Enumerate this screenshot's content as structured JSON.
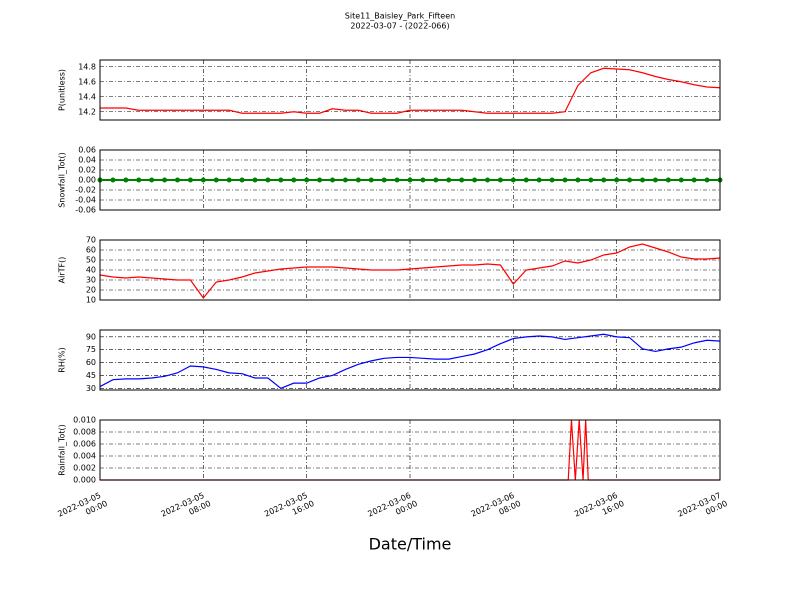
{
  "title": "Site11_Baisley_Park_Fifteen",
  "subtitle": "2022-03-07 - (2022-066)",
  "xlabel": "Date/Time",
  "xlim": [
    "2022-03-05 00:00",
    "2022-03-07 00:00"
  ],
  "xticks": [
    "2022-03-05 00:00",
    "2022-03-05 08:00",
    "2022-03-05 16:00",
    "2022-03-06 00:00",
    "2022-03-06 08:00",
    "2022-03-06 16:00",
    "2022-03-07 00:00"
  ],
  "chart_data": [
    {
      "type": "line",
      "ylabel": "P(unitless)",
      "ylim": [
        14.09,
        14.89
      ],
      "yticks": [
        14.2,
        14.4,
        14.6,
        14.8
      ],
      "grid": true,
      "x": [
        "2022-03-05 00:00",
        "2022-03-05 01:00",
        "2022-03-05 02:00",
        "2022-03-05 03:00",
        "2022-03-05 04:00",
        "2022-03-05 05:00",
        "2022-03-05 06:00",
        "2022-03-05 07:00",
        "2022-03-05 08:00",
        "2022-03-05 09:00",
        "2022-03-05 10:00",
        "2022-03-05 11:00",
        "2022-03-05 12:00",
        "2022-03-05 13:00",
        "2022-03-05 14:00",
        "2022-03-05 15:00",
        "2022-03-05 16:00",
        "2022-03-05 17:00",
        "2022-03-05 18:00",
        "2022-03-05 19:00",
        "2022-03-05 20:00",
        "2022-03-05 21:00",
        "2022-03-05 22:00",
        "2022-03-05 23:00",
        "2022-03-06 00:00",
        "2022-03-06 01:00",
        "2022-03-06 02:00",
        "2022-03-06 03:00",
        "2022-03-06 04:00",
        "2022-03-06 05:00",
        "2022-03-06 06:00",
        "2022-03-06 07:00",
        "2022-03-06 08:00",
        "2022-03-06 09:00",
        "2022-03-06 10:00",
        "2022-03-06 11:00",
        "2022-03-06 12:00",
        "2022-03-06 13:00",
        "2022-03-06 14:00",
        "2022-03-06 15:00",
        "2022-03-06 16:00",
        "2022-03-06 17:00",
        "2022-03-06 18:00",
        "2022-03-06 19:00",
        "2022-03-06 20:00",
        "2022-03-06 21:00",
        "2022-03-06 22:00",
        "2022-03-06 23:00",
        "2022-03-07 00:00"
      ],
      "series": [
        {
          "color": "#ff0000",
          "values": [
            14.25,
            14.25,
            14.25,
            14.22,
            14.22,
            14.22,
            14.22,
            14.22,
            14.22,
            14.22,
            14.22,
            14.18,
            14.18,
            14.18,
            14.18,
            14.2,
            14.18,
            14.18,
            14.24,
            14.22,
            14.22,
            14.18,
            14.18,
            14.18,
            14.22,
            14.22,
            14.22,
            14.22,
            14.22,
            14.2,
            14.18,
            14.18,
            14.18,
            14.18,
            14.18,
            14.18,
            14.2,
            14.55,
            14.72,
            14.78,
            14.77,
            14.76,
            14.72,
            14.67,
            14.63,
            14.6,
            14.56,
            14.53,
            14.52
          ]
        }
      ]
    },
    {
      "type": "line",
      "ylabel": "Snowfall_Tot()",
      "ylim": [
        -0.06,
        0.06
      ],
      "yticks": [
        {
          "value": -0.06,
          "label": "-0.06"
        },
        {
          "value": -0.04,
          "label": "-0.04"
        },
        {
          "value": -0.02,
          "label": "-0.02"
        },
        {
          "value": 0,
          "label": "0.00"
        },
        {
          "value": 0.02,
          "label": "0.02"
        },
        {
          "value": 0.04,
          "label": "0.04"
        },
        {
          "value": 0.06,
          "label": "0.06"
        }
      ],
      "grid": true,
      "x": [
        "2022-03-05 00:00",
        "2022-03-05 01:00",
        "2022-03-05 02:00",
        "2022-03-05 03:00",
        "2022-03-05 04:00",
        "2022-03-05 05:00",
        "2022-03-05 06:00",
        "2022-03-05 07:00",
        "2022-03-05 08:00",
        "2022-03-05 09:00",
        "2022-03-05 10:00",
        "2022-03-05 11:00",
        "2022-03-05 12:00",
        "2022-03-05 13:00",
        "2022-03-05 14:00",
        "2022-03-05 15:00",
        "2022-03-05 16:00",
        "2022-03-05 17:00",
        "2022-03-05 18:00",
        "2022-03-05 19:00",
        "2022-03-05 20:00",
        "2022-03-05 21:00",
        "2022-03-05 22:00",
        "2022-03-05 23:00",
        "2022-03-06 00:00",
        "2022-03-06 01:00",
        "2022-03-06 02:00",
        "2022-03-06 03:00",
        "2022-03-06 04:00",
        "2022-03-06 05:00",
        "2022-03-06 06:00",
        "2022-03-06 07:00",
        "2022-03-06 08:00",
        "2022-03-06 09:00",
        "2022-03-06 10:00",
        "2022-03-06 11:00",
        "2022-03-06 12:00",
        "2022-03-06 13:00",
        "2022-03-06 14:00",
        "2022-03-06 15:00",
        "2022-03-06 16:00",
        "2022-03-06 17:00",
        "2022-03-06 18:00",
        "2022-03-06 19:00",
        "2022-03-06 20:00",
        "2022-03-06 21:00",
        "2022-03-06 22:00",
        "2022-03-06 23:00",
        "2022-03-07 00:00"
      ],
      "series": [
        {
          "color": "#008000",
          "marker": true,
          "values": [
            0,
            0,
            0,
            0,
            0,
            0,
            0,
            0,
            0,
            0,
            0,
            0,
            0,
            0,
            0,
            0,
            0,
            0,
            0,
            0,
            0,
            0,
            0,
            0,
            0,
            0,
            0,
            0,
            0,
            0,
            0,
            0,
            0,
            0,
            0,
            0,
            0,
            0,
            0,
            0,
            0,
            0,
            0,
            0,
            0,
            0,
            0,
            0,
            0
          ]
        }
      ]
    },
    {
      "type": "line",
      "ylabel": "AirTF()",
      "ylim": [
        10,
        70
      ],
      "yticks": [
        10,
        20,
        30,
        40,
        50,
        60,
        70
      ],
      "grid": true,
      "x": [
        "2022-03-05 00:00",
        "2022-03-05 01:00",
        "2022-03-05 02:00",
        "2022-03-05 03:00",
        "2022-03-05 04:00",
        "2022-03-05 05:00",
        "2022-03-05 06:00",
        "2022-03-05 07:00",
        "2022-03-05 08:00",
        "2022-03-05 09:00",
        "2022-03-05 10:00",
        "2022-03-05 11:00",
        "2022-03-05 12:00",
        "2022-03-05 13:00",
        "2022-03-05 14:00",
        "2022-03-05 15:00",
        "2022-03-05 16:00",
        "2022-03-05 17:00",
        "2022-03-05 18:00",
        "2022-03-05 19:00",
        "2022-03-05 20:00",
        "2022-03-05 21:00",
        "2022-03-05 22:00",
        "2022-03-05 23:00",
        "2022-03-06 00:00",
        "2022-03-06 01:00",
        "2022-03-06 02:00",
        "2022-03-06 03:00",
        "2022-03-06 04:00",
        "2022-03-06 05:00",
        "2022-03-06 06:00",
        "2022-03-06 07:00",
        "2022-03-06 08:00",
        "2022-03-06 09:00",
        "2022-03-06 10:00",
        "2022-03-06 11:00",
        "2022-03-06 12:00",
        "2022-03-06 13:00",
        "2022-03-06 14:00",
        "2022-03-06 15:00",
        "2022-03-06 16:00",
        "2022-03-06 17:00",
        "2022-03-06 18:00",
        "2022-03-06 19:00",
        "2022-03-06 20:00",
        "2022-03-06 21:00",
        "2022-03-06 22:00",
        "2022-03-06 23:00",
        "2022-03-07 00:00"
      ],
      "series": [
        {
          "color": "#ff0000",
          "values": [
            35,
            33,
            32,
            33,
            32,
            31,
            30,
            30,
            12,
            28,
            30,
            33,
            37,
            39,
            41,
            42,
            43,
            43,
            43,
            42,
            41,
            40,
            40,
            40,
            41,
            42,
            43,
            44,
            45,
            45,
            46,
            45,
            26,
            40,
            42,
            44,
            49,
            47,
            50,
            55,
            57,
            63,
            66,
            62,
            58,
            53,
            51,
            51,
            52
          ]
        }
      ]
    },
    {
      "type": "line",
      "ylabel": "RH(%)",
      "ylim": [
        28,
        98
      ],
      "yticks": [
        30,
        45,
        60,
        75,
        90
      ],
      "grid": true,
      "x": [
        "2022-03-05 00:00",
        "2022-03-05 01:00",
        "2022-03-05 02:00",
        "2022-03-05 03:00",
        "2022-03-05 04:00",
        "2022-03-05 05:00",
        "2022-03-05 06:00",
        "2022-03-05 07:00",
        "2022-03-05 08:00",
        "2022-03-05 09:00",
        "2022-03-05 10:00",
        "2022-03-05 11:00",
        "2022-03-05 12:00",
        "2022-03-05 13:00",
        "2022-03-05 14:00",
        "2022-03-05 15:00",
        "2022-03-05 16:00",
        "2022-03-05 17:00",
        "2022-03-05 18:00",
        "2022-03-05 19:00",
        "2022-03-05 20:00",
        "2022-03-05 21:00",
        "2022-03-05 22:00",
        "2022-03-05 23:00",
        "2022-03-06 00:00",
        "2022-03-06 01:00",
        "2022-03-06 02:00",
        "2022-03-06 03:00",
        "2022-03-06 04:00",
        "2022-03-06 05:00",
        "2022-03-06 06:00",
        "2022-03-06 07:00",
        "2022-03-06 08:00",
        "2022-03-06 09:00",
        "2022-03-06 10:00",
        "2022-03-06 11:00",
        "2022-03-06 12:00",
        "2022-03-06 13:00",
        "2022-03-06 14:00",
        "2022-03-06 15:00",
        "2022-03-06 16:00",
        "2022-03-06 17:00",
        "2022-03-06 18:00",
        "2022-03-06 19:00",
        "2022-03-06 20:00",
        "2022-03-06 21:00",
        "2022-03-06 22:00",
        "2022-03-06 23:00",
        "2022-03-07 00:00"
      ],
      "series": [
        {
          "color": "#0000ff",
          "values": [
            32,
            40,
            41,
            41,
            42,
            44,
            48,
            56,
            55,
            52,
            48,
            47,
            42,
            42,
            30,
            36,
            36,
            42,
            45,
            52,
            58,
            62,
            65,
            66,
            66,
            65,
            64,
            64,
            67,
            70,
            75,
            82,
            88,
            90,
            91,
            90,
            87,
            89,
            91,
            93,
            90,
            89,
            76,
            73,
            76,
            78,
            83,
            86,
            85
          ]
        }
      ]
    },
    {
      "type": "line",
      "ylabel": "Rainfall_Tot()",
      "ylim": [
        0,
        0.01
      ],
      "yticks": [
        {
          "value": 0,
          "label": "0.000"
        },
        {
          "value": 0.002,
          "label": "0.002"
        },
        {
          "value": 0.004,
          "label": "0.004"
        },
        {
          "value": 0.006,
          "label": "0.006"
        },
        {
          "value": 0.008,
          "label": "0.008"
        },
        {
          "value": 0.01,
          "label": "0.010"
        }
      ],
      "grid": true,
      "show_xticklabels": true,
      "x": [
        "2022-03-05 00:00",
        "2022-03-06 12:15",
        "2022-03-06 12:30",
        "2022-03-06 12:48",
        "2022-03-06 13:06",
        "2022-03-06 13:24",
        "2022-03-06 13:36",
        "2022-03-06 13:48",
        "2022-03-07 00:00"
      ],
      "series": [
        {
          "color": "#ff0000",
          "values": [
            0,
            0,
            0.01,
            0,
            0.01,
            0,
            0.01,
            0,
            0
          ]
        }
      ]
    }
  ]
}
